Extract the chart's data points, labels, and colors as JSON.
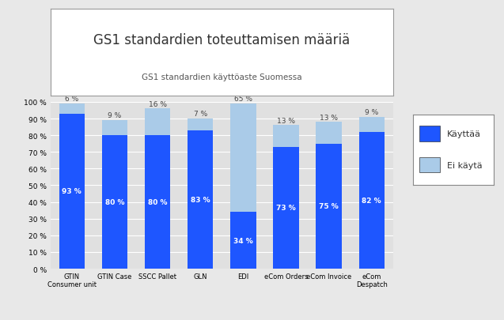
{
  "title": "GS1 standardien toteuttamisen määriä",
  "subtitle": "GS1 standardien käyttöaste Suomessa",
  "categories": [
    "GTIN\nConsumer unit",
    "GTIN Case",
    "SSCC Pallet",
    "GLN",
    "EDI",
    "eCom Orders",
    "eCom Invoice",
    "eCom\nDespatch"
  ],
  "use_values": [
    93,
    80,
    80,
    83,
    34,
    73,
    75,
    82
  ],
  "no_use_values": [
    6,
    9,
    16,
    7,
    65,
    13,
    13,
    9
  ],
  "total_values": [
    99,
    89,
    96,
    90,
    99,
    86,
    88,
    91
  ],
  "use_color": "#1E56FF",
  "no_use_color": "#AACBE8",
  "background_color": "#E8E8E8",
  "plot_bg_color": "#E0E0E0",
  "legend_kayttaa": "Käyttää",
  "legend_ei_kayta": "Ei käytä"
}
